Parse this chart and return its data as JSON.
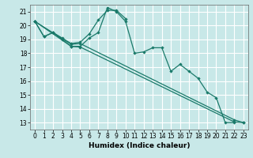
{
  "xlabel": "Humidex (Indice chaleur)",
  "bg_color": "#c8e8e8",
  "grid_color": "#ffffff",
  "line_color": "#1a7a6a",
  "xlim": [
    -0.5,
    23.5
  ],
  "ylim": [
    12.5,
    21.5
  ],
  "yticks": [
    13,
    14,
    15,
    16,
    17,
    18,
    19,
    20,
    21
  ],
  "xticks": [
    0,
    1,
    2,
    3,
    4,
    5,
    6,
    7,
    8,
    9,
    10,
    11,
    12,
    13,
    14,
    15,
    16,
    17,
    18,
    19,
    20,
    21,
    22,
    23
  ],
  "line1_x": [
    0,
    1,
    2,
    3,
    4,
    5,
    6,
    7,
    8,
    9,
    10,
    11,
    12,
    13,
    14,
    15,
    16,
    17,
    18,
    19,
    20,
    21,
    22
  ],
  "line1_y": [
    20.3,
    19.2,
    19.5,
    19.0,
    18.5,
    18.5,
    19.1,
    19.5,
    21.3,
    21.0,
    20.3,
    18.0,
    18.1,
    18.4,
    18.4,
    16.7,
    17.2,
    16.7,
    16.2,
    15.2,
    14.8,
    13.0,
    13.0
  ],
  "line2_x": [
    0,
    1,
    2,
    3,
    4,
    5,
    6,
    7,
    8,
    9,
    10
  ],
  "line2_y": [
    20.3,
    19.2,
    19.5,
    19.1,
    18.7,
    18.8,
    19.4,
    20.4,
    21.1,
    21.1,
    20.5
  ],
  "line3_x": [
    0,
    4,
    5,
    22,
    23
  ],
  "line3_y": [
    20.3,
    18.5,
    18.45,
    13.05,
    13.0
  ],
  "line4_x": [
    0,
    4,
    5,
    22,
    23
  ],
  "line4_y": [
    20.3,
    18.65,
    18.7,
    13.2,
    13.0
  ],
  "tick_fontsize": 5.5,
  "xlabel_fontsize": 6.5,
  "linewidth": 0.9,
  "markersize": 2.2
}
